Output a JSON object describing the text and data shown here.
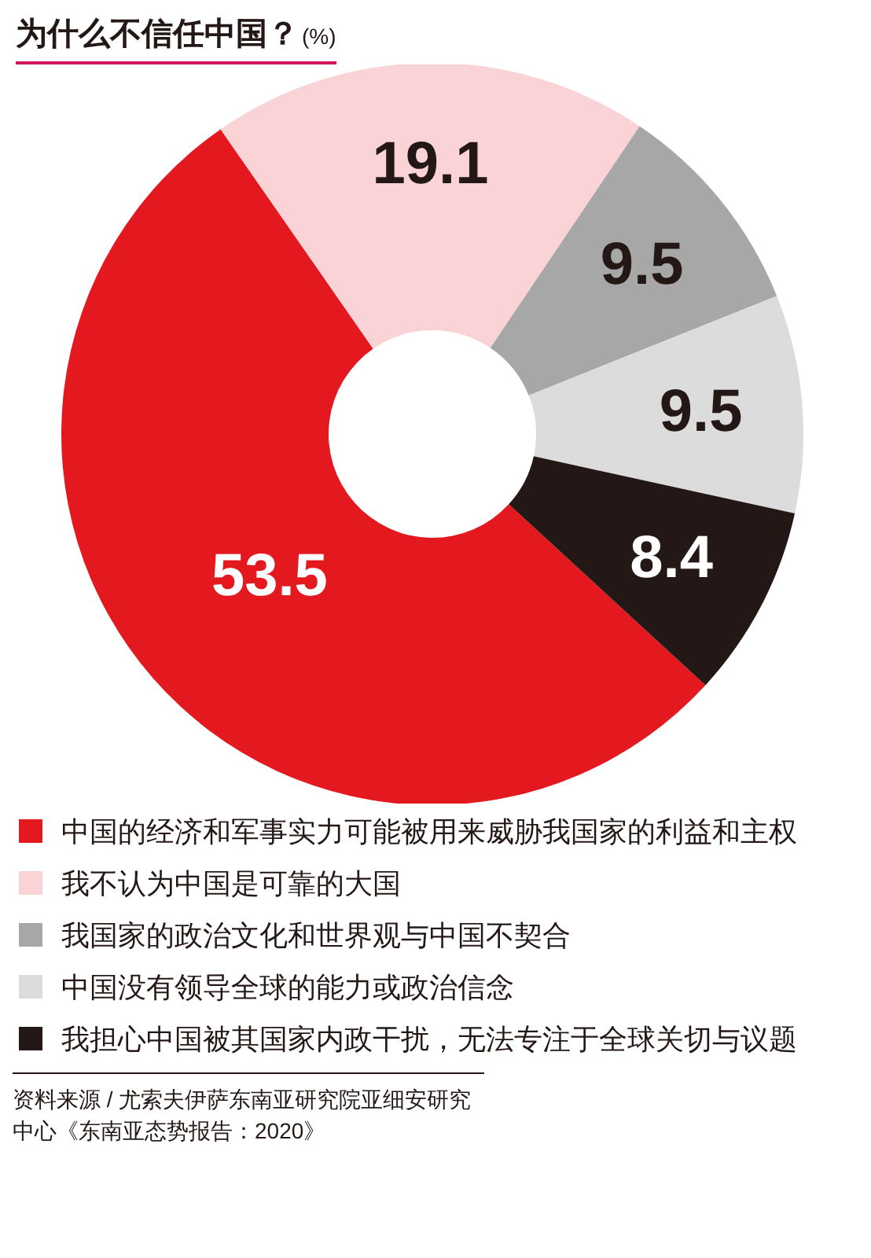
{
  "chart_data": {
    "type": "donut",
    "title": "为什么不信任中国？",
    "subtitle": "(%)",
    "categories": [
      "中国的经济和军事实力可能被用来威胁我国家的利益和主权",
      "我不认为中国是可靠的大国",
      "我国家的政治文化和世界观与中国不契合",
      "中国没有领导全球的能力或政治信念",
      "我担心中国被其国家内政干扰，无法专注于全球关切与议题"
    ],
    "values": [
      53.5,
      19.1,
      9.5,
      9.5,
      8.4
    ],
    "colors": [
      "#e3191f",
      "#f9d3d5",
      "#a7a7a7",
      "#dcdcdc",
      "#231816"
    ],
    "data_labels": true,
    "legend": "bottom",
    "annotations": [
      "资料来源 / 尤索夫伊萨东南亚研究院亚细安研究中心《东南亚态势报告：2020》"
    ]
  }
}
